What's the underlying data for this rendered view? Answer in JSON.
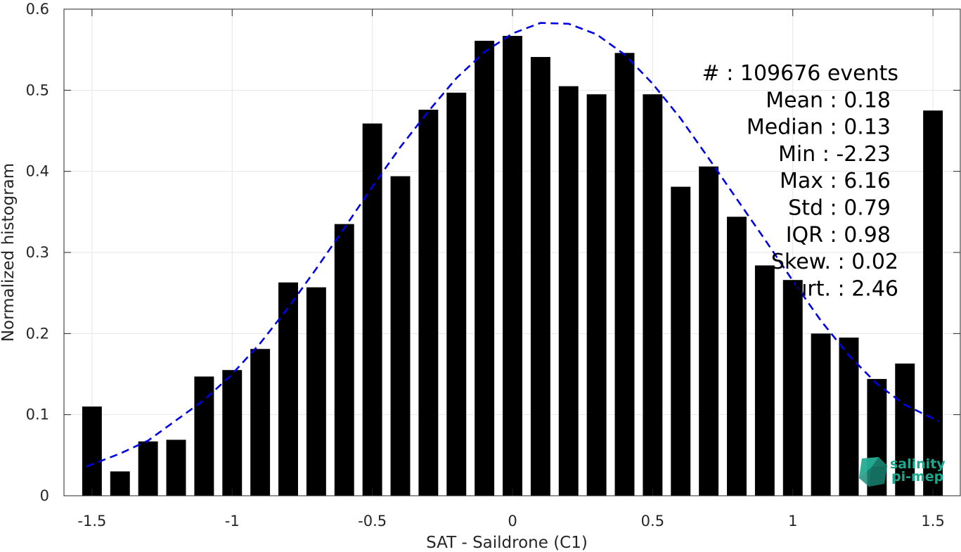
{
  "chart_data": {
    "type": "bar",
    "xlabel": "SAT - Saildrone (C1)",
    "ylabel": "Normalized histogram",
    "xlim": [
      -1.6,
      1.6
    ],
    "ylim": [
      0,
      0.6
    ],
    "grid": true,
    "x_ticks": [
      {
        "value": -1.5,
        "label": "-1.5"
      },
      {
        "value": -1.0,
        "label": "-1"
      },
      {
        "value": -0.5,
        "label": "-0.5"
      },
      {
        "value": 0.0,
        "label": "0"
      },
      {
        "value": 0.5,
        "label": "0.5"
      },
      {
        "value": 1.0,
        "label": "1"
      },
      {
        "value": 1.5,
        "label": "1.5"
      }
    ],
    "y_ticks": [
      {
        "value": 0,
        "label": "0"
      },
      {
        "value": 0.1,
        "label": "0.1"
      },
      {
        "value": 0.2,
        "label": "0.2"
      },
      {
        "value": 0.3,
        "label": "0.3"
      },
      {
        "value": 0.4,
        "label": "0.4"
      },
      {
        "value": 0.5,
        "label": "0.5"
      },
      {
        "value": 0.6,
        "label": "0.6"
      }
    ],
    "bar_width": 0.07,
    "bar_color": "#000000",
    "bins": [
      -1.5,
      -1.4,
      -1.3,
      -1.2,
      -1.1,
      -1.0,
      -0.9,
      -0.8,
      -0.7,
      -0.6,
      -0.5,
      -0.4,
      -0.3,
      -0.2,
      -0.1,
      0.0,
      0.1,
      0.2,
      0.3,
      0.4,
      0.5,
      0.6,
      0.7,
      0.8,
      0.9,
      1.0,
      1.1,
      1.2,
      1.3,
      1.4,
      1.5
    ],
    "values": [
      0.11,
      0.03,
      0.067,
      0.069,
      0.147,
      0.155,
      0.181,
      0.263,
      0.257,
      0.335,
      0.459,
      0.394,
      0.476,
      0.497,
      0.561,
      0.567,
      0.541,
      0.505,
      0.495,
      0.546,
      0.495,
      0.381,
      0.406,
      0.344,
      0.284,
      0.266,
      0.2,
      0.195,
      0.144,
      0.163,
      0.475
    ],
    "fit_curve": {
      "style": "dashed",
      "color": "#0000e6",
      "x": [
        -1.52,
        -1.4,
        -1.3,
        -1.2,
        -1.1,
        -1.0,
        -0.9,
        -0.8,
        -0.7,
        -0.6,
        -0.5,
        -0.4,
        -0.3,
        -0.2,
        -0.1,
        0.0,
        0.1,
        0.2,
        0.3,
        0.4,
        0.5,
        0.6,
        0.7,
        0.8,
        0.9,
        1.0,
        1.1,
        1.2,
        1.3,
        1.4,
        1.52
      ],
      "y": [
        0.036,
        0.052,
        0.068,
        0.093,
        0.118,
        0.15,
        0.188,
        0.232,
        0.28,
        0.33,
        0.381,
        0.43,
        0.474,
        0.515,
        0.547,
        0.57,
        0.583,
        0.582,
        0.569,
        0.544,
        0.508,
        0.465,
        0.416,
        0.366,
        0.316,
        0.265,
        0.216,
        0.173,
        0.138,
        0.112,
        0.092
      ]
    },
    "stats": [
      {
        "label": "#  ",
        "value": "109676 events"
      },
      {
        "label": "Mean",
        "value": "0.18"
      },
      {
        "label": "Median",
        "value": "0.13"
      },
      {
        "label": "Min",
        "value": "-2.23"
      },
      {
        "label": "Max",
        "value": "6.16"
      },
      {
        "label": "Std",
        "value": "0.79"
      },
      {
        "label": "IQR",
        "value": "0.98"
      },
      {
        "label": "Skew.",
        "value": "0.02"
      },
      {
        "label": "Kurt.",
        "value": "2.46"
      }
    ]
  },
  "logo": {
    "line1": "salinity",
    "line2": "pi-mep",
    "color": "#1aa88e"
  }
}
